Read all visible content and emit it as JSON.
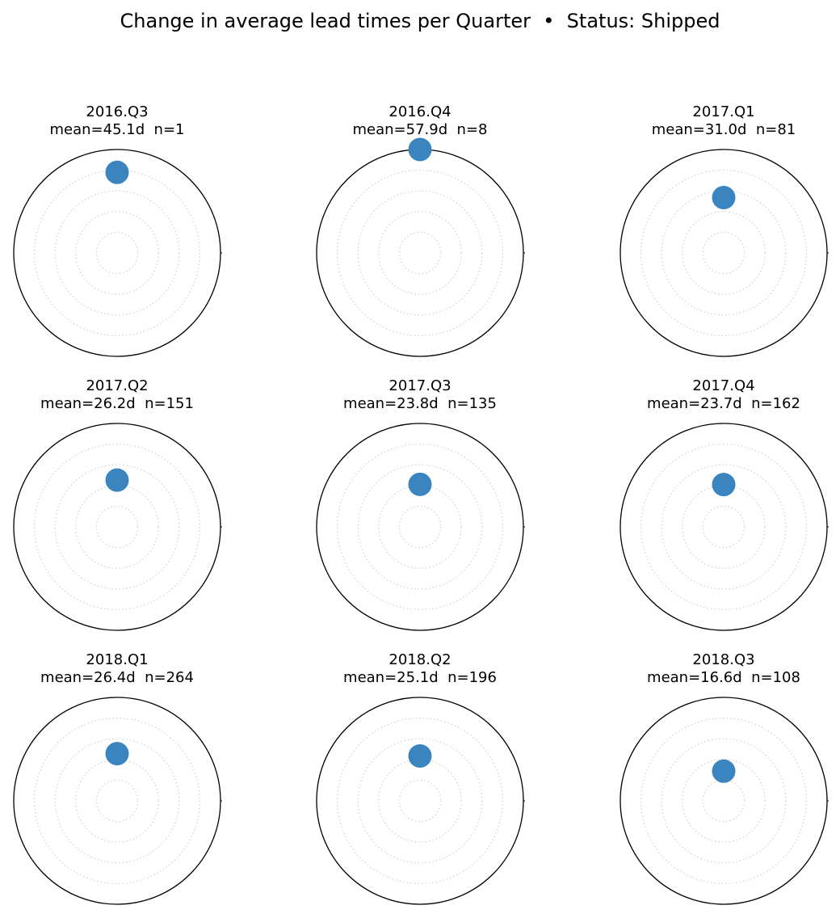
{
  "chart_data": {
    "type": "scatter",
    "subtype": "polar small multiples",
    "title": "Change in average lead times per Quarter  •  Status: Shipped",
    "grid": true,
    "marker_color": "#3a85bf",
    "r_max": 57.9,
    "panels": [
      {
        "quarter": "2016.Q3",
        "mean": 45.1,
        "n": 1,
        "mean_label": "mean=45.1d  n=1"
      },
      {
        "quarter": "2016.Q4",
        "mean": 57.9,
        "n": 8,
        "mean_label": "mean=57.9d  n=8"
      },
      {
        "quarter": "2017.Q1",
        "mean": 31.0,
        "n": 81,
        "mean_label": "mean=31.0d  n=81"
      },
      {
        "quarter": "2017.Q2",
        "mean": 26.2,
        "n": 151,
        "mean_label": "mean=26.2d  n=151"
      },
      {
        "quarter": "2017.Q3",
        "mean": 23.8,
        "n": 135,
        "mean_label": "mean=23.8d  n=135"
      },
      {
        "quarter": "2017.Q4",
        "mean": 23.7,
        "n": 162,
        "mean_label": "mean=23.7d  n=162"
      },
      {
        "quarter": "2018.Q1",
        "mean": 26.4,
        "n": 264,
        "mean_label": "mean=26.4d  n=264"
      },
      {
        "quarter": "2018.Q2",
        "mean": 25.1,
        "n": 196,
        "mean_label": "mean=25.1d  n=196"
      },
      {
        "quarter": "2018.Q3",
        "mean": 16.6,
        "n": 108,
        "mean_label": "mean=16.6d  n=108"
      }
    ]
  }
}
